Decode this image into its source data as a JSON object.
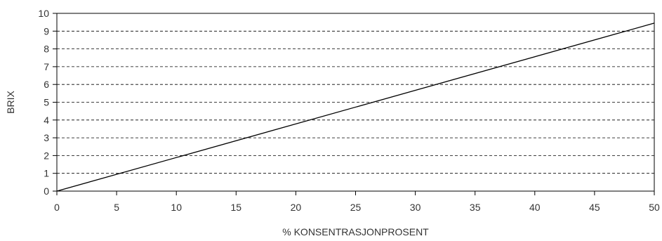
{
  "chart_data": {
    "type": "line",
    "title": "",
    "xlabel": "% KONSENTRASJONPROSENT",
    "ylabel": "BRIX",
    "xlim": [
      0,
      50
    ],
    "ylim": [
      0,
      10
    ],
    "x_ticks": [
      0,
      5,
      10,
      15,
      20,
      25,
      30,
      35,
      40,
      45,
      50
    ],
    "y_ticks": [
      0,
      1,
      2,
      3,
      4,
      5,
      6,
      7,
      8,
      9,
      10
    ],
    "grid": "horizontal dashed",
    "legend": "none",
    "series": [
      {
        "x": [
          0,
          50
        ],
        "y": [
          0,
          9.45
        ],
        "color": "#000000"
      }
    ]
  }
}
